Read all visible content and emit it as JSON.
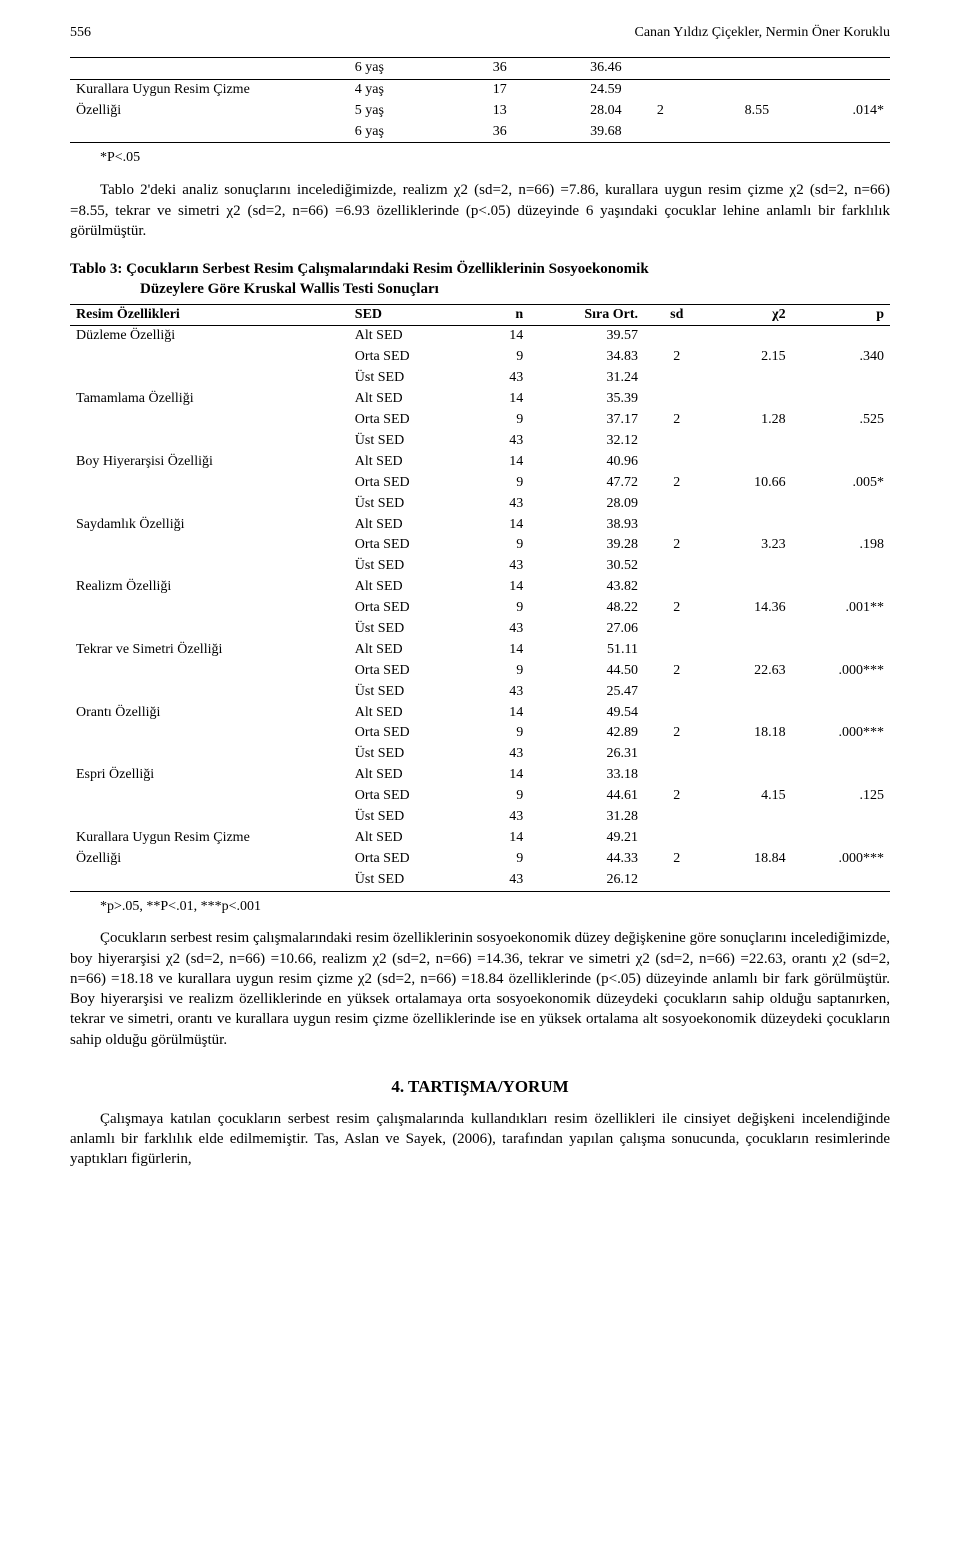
{
  "header": {
    "page": "556",
    "authors": "Canan Yıldız Çiçekler, Nermin Öner Koruklu"
  },
  "table_top": {
    "rows": [
      {
        "age": "6 yaş",
        "n": "36",
        "mean": "36.46",
        "sd": "",
        "chi": "",
        "p": ""
      },
      {
        "age": "4 yaş",
        "n": "17",
        "mean": "24.59",
        "sd": "",
        "chi": "",
        "p": ""
      },
      {
        "age": "5 yaş",
        "n": "13",
        "mean": "28.04",
        "sd": "2",
        "chi": "8.55",
        "p": ".014*"
      },
      {
        "age": "6 yaş",
        "n": "36",
        "mean": "39.68",
        "sd": "",
        "chi": "",
        "p": ""
      }
    ],
    "row_label_1": "Kurallara Uygun Resim Çizme",
    "row_label_2": "Özelliği",
    "note": "*P<.05"
  },
  "para1": "Tablo 2'deki analiz sonuçlarını incelediğimizde, realizm χ2 (sd=2, n=66) =7.86, kurallara uygun resim çizme χ2 (sd=2, n=66) =8.55, tekrar ve simetri χ2 (sd=2, n=66) =6.93 özelliklerinde (p<.05) düzeyinde 6 yaşındaki çocuklar lehine anlamlı bir farklılık görülmüştür.",
  "table3": {
    "title_l1": "Tablo 3: Çocukların Serbest Resim Çalışmalarındaki Resim Özelliklerinin Sosyoekonomik",
    "title_l2": "Düzeylere Göre Kruskal Wallis Testi Sonuçları",
    "head": {
      "feat": "Resim Özellikleri",
      "sed": "SED",
      "n": "n",
      "ort": "Sıra Ort.",
      "sd": "sd",
      "chi": "χ2",
      "p": "p"
    },
    "groups": [
      {
        "feat": "Düzleme Özelliği",
        "rows": [
          [
            "Alt SED",
            "14",
            "39.57"
          ],
          [
            "Orta SED",
            "9",
            "34.83"
          ],
          [
            "Üst SED",
            "43",
            "31.24"
          ]
        ],
        "sd": "2",
        "chi": "2.15",
        "p": ".340"
      },
      {
        "feat": "Tamamlama Özelliği",
        "rows": [
          [
            "Alt SED",
            "14",
            "35.39"
          ],
          [
            "Orta SED",
            "9",
            "37.17"
          ],
          [
            "Üst SED",
            "43",
            "32.12"
          ]
        ],
        "sd": "2",
        "chi": "1.28",
        "p": ".525"
      },
      {
        "feat": "Boy Hiyerarşisi Özelliği",
        "rows": [
          [
            "Alt SED",
            "14",
            "40.96"
          ],
          [
            "Orta SED",
            "9",
            "47.72"
          ],
          [
            "Üst SED",
            "43",
            "28.09"
          ]
        ],
        "sd": "2",
        "chi": "10.66",
        "p": ".005*"
      },
      {
        "feat": "Saydamlık Özelliği",
        "rows": [
          [
            "Alt SED",
            "14",
            "38.93"
          ],
          [
            "Orta SED",
            "9",
            "39.28"
          ],
          [
            "Üst SED",
            "43",
            "30.52"
          ]
        ],
        "sd": "2",
        "chi": "3.23",
        "p": ".198"
      },
      {
        "feat": "Realizm Özelliği",
        "rows": [
          [
            "Alt SED",
            "14",
            "43.82"
          ],
          [
            "Orta SED",
            "9",
            "48.22"
          ],
          [
            "Üst SED",
            "43",
            "27.06"
          ]
        ],
        "sd": "2",
        "chi": "14.36",
        "p": ".001**"
      },
      {
        "feat": "Tekrar ve Simetri Özelliği",
        "rows": [
          [
            "Alt SED",
            "14",
            "51.11"
          ],
          [
            "Orta SED",
            "9",
            "44.50"
          ],
          [
            "Üst SED",
            "43",
            "25.47"
          ]
        ],
        "sd": "2",
        "chi": "22.63",
        "p": ".000***"
      },
      {
        "feat": "Orantı Özelliği",
        "rows": [
          [
            "Alt SED",
            "14",
            "49.54"
          ],
          [
            "Orta SED",
            "9",
            "42.89"
          ],
          [
            "Üst SED",
            "43",
            "26.31"
          ]
        ],
        "sd": "2",
        "chi": "18.18",
        "p": ".000***"
      },
      {
        "feat": "Espri Özelliği",
        "rows": [
          [
            "Alt SED",
            "14",
            "33.18"
          ],
          [
            "Orta SED",
            "9",
            "44.61"
          ],
          [
            "Üst SED",
            "43",
            "31.28"
          ]
        ],
        "sd": "2",
        "chi": "4.15",
        "p": ".125"
      },
      {
        "feat": "Kurallara Uygun Resim Çizme",
        "feat2": "Özelliği",
        "rows": [
          [
            "Alt SED",
            "14",
            "49.21"
          ],
          [
            "Orta SED",
            "9",
            "44.33"
          ],
          [
            "Üst SED",
            "43",
            "26.12"
          ]
        ],
        "sd": "2",
        "chi": "18.84",
        "p": ".000***"
      }
    ],
    "note": "*p>.05, **P<.01, ***p<.001"
  },
  "para2": "Çocukların serbest resim çalışmalarındaki resim özelliklerinin sosyoekonomik düzey değişkenine göre sonuçlarını incelediğimizde, boy hiyerarşisi χ2 (sd=2, n=66) =10.66, realizm χ2 (sd=2, n=66) =14.36, tekrar ve simetri χ2 (sd=2, n=66) =22.63, orantı χ2 (sd=2, n=66) =18.18 ve kurallara uygun resim çizme χ2 (sd=2, n=66) =18.84 özelliklerinde (p<.05) düzeyinde anlamlı bir fark görülmüştür. Boy hiyerarşisi ve realizm özelliklerinde en yüksek ortalamaya orta sosyoekonomik düzeydeki çocukların sahip olduğu saptanırken, tekrar ve simetri, orantı ve kurallara uygun resim çizme özelliklerinde ise en yüksek ortalama alt sosyoekonomik düzeydeki çocukların sahip olduğu görülmüştür.",
  "section_title": "4. TARTIŞMA/YORUM",
  "para3": "Çalışmaya katılan çocukların serbest resim çalışmalarında kullandıkları resim özellikleri ile cinsiyet değişkeni incelendiğinde anlamlı bir farklılık elde edilmemiştir. Tas, Aslan ve Sayek, (2006), tarafından yapılan çalışma sonucunda, çocukların resimlerinde yaptıkları figürlerin,"
}
